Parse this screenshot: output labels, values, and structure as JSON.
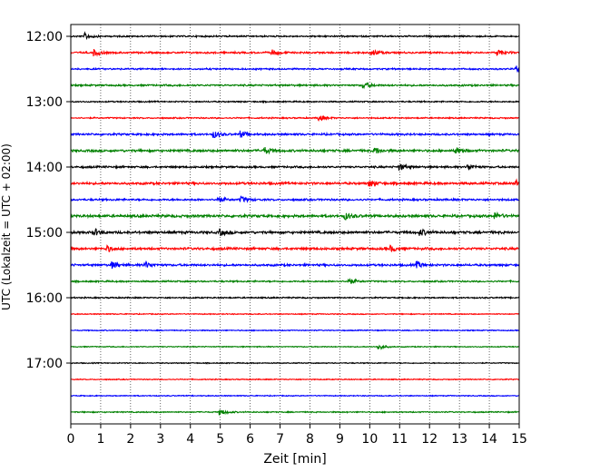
{
  "chart_data": {
    "type": "line",
    "title": "",
    "xlabel": "Zeit  [min]",
    "ylabel": "UTC (Lokalzeit = UTC + 02:00)",
    "xlim": [
      0,
      15
    ],
    "x_ticks": [
      0,
      1,
      2,
      3,
      4,
      5,
      6,
      7,
      8,
      9,
      10,
      11,
      12,
      13,
      14,
      15
    ],
    "x_tick_labels": [
      "0",
      "1",
      "2",
      "3",
      "4",
      "5",
      "6",
      "7",
      "8",
      "9",
      "10",
      "11",
      "12",
      "13",
      "14",
      "15"
    ],
    "y_ticks": [
      "12:00",
      "13:00",
      "14:00",
      "15:00",
      "16:00",
      "17:00"
    ],
    "grid": "vertical-dotted",
    "trace_interval_min": 15,
    "colors": [
      "#000000",
      "#ff0000",
      "#0000ff",
      "#008000"
    ],
    "traces": [
      {
        "start": "12:00",
        "color": "#000000",
        "level": 0.8,
        "events": [
          0.5
        ]
      },
      {
        "start": "12:15",
        "color": "#ff0000",
        "level": 0.9,
        "events": [
          0.8,
          6.7,
          10.1,
          14.3
        ]
      },
      {
        "start": "12:30",
        "color": "#0000ff",
        "level": 0.8,
        "events": [
          14.9
        ]
      },
      {
        "start": "12:45",
        "color": "#008000",
        "level": 0.9,
        "events": [
          9.8
        ]
      },
      {
        "start": "13:00",
        "color": "#000000",
        "level": 0.7,
        "events": []
      },
      {
        "start": "13:15",
        "color": "#ff0000",
        "level": 0.7,
        "events": [
          8.3
        ]
      },
      {
        "start": "13:30",
        "color": "#0000ff",
        "level": 1.0,
        "events": [
          4.8,
          5.7
        ]
      },
      {
        "start": "13:45",
        "color": "#008000",
        "level": 1.2,
        "events": [
          6.5,
          10.2,
          12.9
        ]
      },
      {
        "start": "14:00",
        "color": "#000000",
        "level": 1.0,
        "events": [
          11.0,
          13.3
        ]
      },
      {
        "start": "14:15",
        "color": "#ff0000",
        "level": 1.2,
        "events": [
          10.0,
          14.9
        ]
      },
      {
        "start": "14:30",
        "color": "#0000ff",
        "level": 1.0,
        "events": [
          4.9,
          5.7
        ]
      },
      {
        "start": "14:45",
        "color": "#008000",
        "level": 1.3,
        "events": [
          9.2,
          14.2
        ]
      },
      {
        "start": "15:00",
        "color": "#000000",
        "level": 1.3,
        "events": [
          0.8,
          5.0,
          11.7
        ]
      },
      {
        "start": "15:15",
        "color": "#ff0000",
        "level": 1.2,
        "events": [
          1.2,
          10.7
        ]
      },
      {
        "start": "15:30",
        "color": "#0000ff",
        "level": 1.1,
        "events": [
          1.4,
          2.5,
          11.6
        ]
      },
      {
        "start": "15:45",
        "color": "#008000",
        "level": 0.8,
        "events": [
          9.3
        ]
      },
      {
        "start": "16:00",
        "color": "#000000",
        "level": 0.7,
        "events": []
      },
      {
        "start": "16:15",
        "color": "#ff0000",
        "level": 0.5,
        "events": []
      },
      {
        "start": "16:30",
        "color": "#0000ff",
        "level": 0.5,
        "events": []
      },
      {
        "start": "16:45",
        "color": "#008000",
        "level": 0.5,
        "events": [
          10.3
        ]
      },
      {
        "start": "17:00",
        "color": "#000000",
        "level": 0.5,
        "events": []
      },
      {
        "start": "17:15",
        "color": "#ff0000",
        "level": 0.5,
        "events": []
      },
      {
        "start": "17:30",
        "color": "#0000ff",
        "level": 0.5,
        "events": []
      },
      {
        "start": "17:45",
        "color": "#008000",
        "level": 0.6,
        "events": [
          5.0
        ]
      }
    ]
  }
}
